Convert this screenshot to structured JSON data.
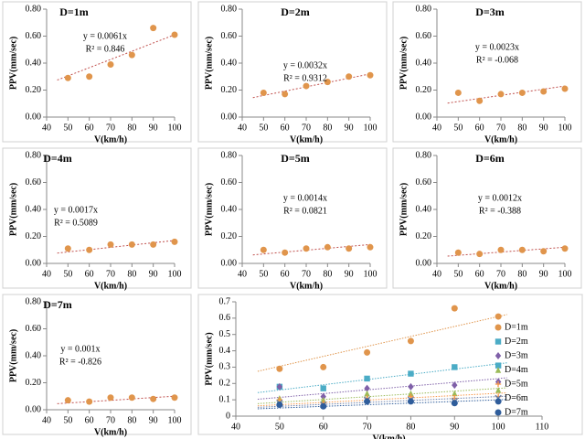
{
  "chart_data": [
    {
      "type": "scatter",
      "title": "D=1m",
      "xlabel": "V(km/h)",
      "ylabel": "PPV(mm/sec)",
      "x": [
        50,
        60,
        70,
        80,
        90,
        100
      ],
      "values": [
        0.29,
        0.3,
        0.39,
        0.46,
        0.66,
        0.61
      ],
      "color": "#e0954c",
      "trendline": {
        "slope": {
          "value": 0.0061,
          "label": "y = 0.0061x"
        },
        "r2": {
          "value": 0.846,
          "label": "R² = 0.846"
        },
        "range": [
          45,
          100
        ]
      },
      "xlim": [
        40,
        100
      ],
      "xticks": [
        40,
        50,
        60,
        70,
        80,
        90,
        100
      ],
      "ylim": [
        0,
        0.8
      ],
      "yticks": [
        {
          "value": 0,
          "label": "0.00"
        },
        {
          "value": 0.2,
          "label": "0.20"
        },
        {
          "value": 0.4,
          "label": "0.40"
        },
        {
          "value": 0.6,
          "label": "0.60"
        },
        {
          "value": 0.8,
          "label": "0.80"
        }
      ]
    },
    {
      "type": "scatter",
      "title": "D=2m",
      "xlabel": "V(km/h)",
      "ylabel": "PPV(mm/sec)",
      "x": [
        50,
        60,
        70,
        80,
        90,
        100
      ],
      "values": [
        0.18,
        0.17,
        0.23,
        0.26,
        0.3,
        0.31
      ],
      "color": "#e0954c",
      "trendline": {
        "slope": {
          "value": 0.0032,
          "label": "y = 0.0032x"
        },
        "r2": {
          "value": 0.9312,
          "label": "R² = 0.9312"
        },
        "range": [
          45,
          100
        ]
      },
      "xlim": [
        40,
        100
      ],
      "xticks": [
        40,
        50,
        60,
        70,
        80,
        90,
        100
      ],
      "ylim": [
        0,
        0.8
      ],
      "yticks": [
        {
          "value": 0,
          "label": "0.00"
        },
        {
          "value": 0.2,
          "label": "0.20"
        },
        {
          "value": 0.4,
          "label": "0.40"
        },
        {
          "value": 0.6,
          "label": "0.60"
        },
        {
          "value": 0.8,
          "label": "0.80"
        }
      ]
    },
    {
      "type": "scatter",
      "title": "D=3m",
      "xlabel": "V(km/h)",
      "ylabel": "PPV(mm/sec)",
      "x": [
        50,
        60,
        70,
        80,
        90,
        100
      ],
      "values": [
        0.18,
        0.12,
        0.17,
        0.18,
        0.19,
        0.21
      ],
      "color": "#e0954c",
      "trendline": {
        "slope": {
          "value": 0.0023,
          "label": "y = 0.0023x"
        },
        "r2": {
          "value": -0.068,
          "label": "R² = -0.068"
        },
        "range": [
          45,
          100
        ]
      },
      "xlim": [
        40,
        100
      ],
      "xticks": [
        40,
        50,
        60,
        70,
        80,
        90,
        100
      ],
      "ylim": [
        0,
        0.8
      ],
      "yticks": [
        {
          "value": 0,
          "label": "0.00"
        },
        {
          "value": 0.2,
          "label": "0.20"
        },
        {
          "value": 0.4,
          "label": "0.40"
        },
        {
          "value": 0.6,
          "label": "0.60"
        },
        {
          "value": 0.8,
          "label": "0.80"
        }
      ]
    },
    {
      "type": "scatter",
      "title": "D=4m",
      "xlabel": "V(km/h)",
      "ylabel": "PPV(mm/sec)",
      "x": [
        50,
        60,
        70,
        80,
        90,
        100
      ],
      "values": [
        0.11,
        0.1,
        0.14,
        0.14,
        0.14,
        0.16
      ],
      "color": "#e0954c",
      "trendline": {
        "slope": {
          "value": 0.0017,
          "label": "y = 0.0017x"
        },
        "r2": {
          "value": 0.5089,
          "label": "R² = 0.5089"
        },
        "range": [
          45,
          100
        ]
      },
      "xlim": [
        40,
        100
      ],
      "xticks": [
        40,
        50,
        60,
        70,
        80,
        90,
        100
      ],
      "ylim": [
        0,
        0.8
      ],
      "yticks": [
        {
          "value": 0,
          "label": "0.00"
        },
        {
          "value": 0.2,
          "label": "0.20"
        },
        {
          "value": 0.4,
          "label": "0.40"
        },
        {
          "value": 0.6,
          "label": "0.60"
        },
        {
          "value": 0.8,
          "label": "0.80"
        }
      ]
    },
    {
      "type": "scatter",
      "title": "D=5m",
      "xlabel": "V(km/h)",
      "ylabel": "PPV(mm/sec)",
      "x": [
        50,
        60,
        70,
        80,
        90,
        100
      ],
      "values": [
        0.1,
        0.08,
        0.11,
        0.12,
        0.11,
        0.12
      ],
      "color": "#e0954c",
      "trendline": {
        "slope": {
          "value": 0.0014,
          "label": "y = 0.0014x"
        },
        "r2": {
          "value": 0.0821,
          "label": "R² = 0.0821"
        },
        "range": [
          45,
          100
        ]
      },
      "xlim": [
        40,
        100
      ],
      "xticks": [
        40,
        50,
        60,
        70,
        80,
        90,
        100
      ],
      "ylim": [
        0,
        0.8
      ],
      "yticks": [
        {
          "value": 0,
          "label": "0.00"
        },
        {
          "value": 0.2,
          "label": "0.20"
        },
        {
          "value": 0.4,
          "label": "0.40"
        },
        {
          "value": 0.6,
          "label": "0.60"
        },
        {
          "value": 0.8,
          "label": "0.80"
        }
      ]
    },
    {
      "type": "scatter",
      "title": "D=6m",
      "xlabel": "V(km/h)",
      "ylabel": "PPV(mm/sec)",
      "x": [
        50,
        60,
        70,
        80,
        90,
        100
      ],
      "values": [
        0.08,
        0.07,
        0.1,
        0.1,
        0.09,
        0.11
      ],
      "color": "#e0954c",
      "trendline": {
        "slope": {
          "value": 0.0012,
          "label": "y = 0.0012x"
        },
        "r2": {
          "value": -0.388,
          "label": "R² = -0.388"
        },
        "range": [
          45,
          100
        ]
      },
      "xlim": [
        40,
        100
      ],
      "xticks": [
        40,
        50,
        60,
        70,
        80,
        90,
        100
      ],
      "ylim": [
        0,
        0.8
      ],
      "yticks": [
        {
          "value": 0,
          "label": "0.00"
        },
        {
          "value": 0.2,
          "label": "0.20"
        },
        {
          "value": 0.4,
          "label": "0.40"
        },
        {
          "value": 0.6,
          "label": "0.60"
        },
        {
          "value": 0.8,
          "label": "0.80"
        }
      ]
    },
    {
      "type": "scatter",
      "title": "D=7m",
      "xlabel": "V(km/h)",
      "ylabel": "PPV(mm/sec)",
      "x": [
        50,
        60,
        70,
        80,
        90,
        100
      ],
      "values": [
        0.07,
        0.06,
        0.09,
        0.09,
        0.08,
        0.09
      ],
      "color": "#e0954c",
      "trendline": {
        "slope": {
          "value": 0.001,
          "label": "y = 0.001x"
        },
        "r2": {
          "value": -0.826,
          "label": "R² = -0.826"
        },
        "range": [
          45,
          100
        ]
      },
      "xlim": [
        40,
        100
      ],
      "xticks": [
        40,
        50,
        60,
        70,
        80,
        90,
        100
      ],
      "ylim": [
        0,
        0.8
      ],
      "yticks": [
        {
          "value": 0,
          "label": "0.00"
        },
        {
          "value": 0.2,
          "label": "0.20"
        },
        {
          "value": 0.4,
          "label": "0.40"
        },
        {
          "value": 0.6,
          "label": "0.60"
        },
        {
          "value": 0.8,
          "label": "0.80"
        }
      ]
    },
    {
      "type": "multi-scatter",
      "xlabel": "V(km/h)",
      "ylabel": "PPV(mm/sec)",
      "x": [
        50,
        60,
        70,
        80,
        90,
        100
      ],
      "trend_range": [
        45,
        102
      ],
      "series": [
        {
          "name": "D=1m",
          "color": "#e0954c",
          "marker": "circle",
          "trendline_slope": 0.0061,
          "values": [
            0.29,
            0.3,
            0.39,
            0.46,
            0.66,
            0.61
          ]
        },
        {
          "name": "D=2m",
          "color": "#4bacc6",
          "marker": "square",
          "trendline_slope": 0.0032,
          "values": [
            0.18,
            0.17,
            0.23,
            0.26,
            0.3,
            0.31
          ]
        },
        {
          "name": "D=3m",
          "color": "#7f60a8",
          "marker": "diamond",
          "trendline_slope": 0.0023,
          "values": [
            0.18,
            0.12,
            0.17,
            0.18,
            0.19,
            0.21
          ]
        },
        {
          "name": "D=4m",
          "color": "#9bbb59",
          "marker": "triangle",
          "trendline_slope": 0.0017,
          "values": [
            0.11,
            0.1,
            0.14,
            0.14,
            0.14,
            0.16
          ]
        },
        {
          "name": "D=5m",
          "color": "#f79646",
          "marker": "plus",
          "trendline_slope": 0.0014,
          "values": [
            0.1,
            0.08,
            0.11,
            0.12,
            0.11,
            0.12
          ]
        },
        {
          "name": "D=6m",
          "color": "#6b7fa8",
          "marker": "x",
          "trendline_slope": 0.0012,
          "values": [
            0.08,
            0.07,
            0.1,
            0.1,
            0.09,
            0.11
          ]
        },
        {
          "name": "D=7m",
          "color": "#2f5d9b",
          "marker": "circle",
          "trendline_slope": 0.001,
          "values": [
            0.07,
            0.06,
            0.09,
            0.09,
            0.08,
            0.09
          ]
        }
      ],
      "xlim": [
        40,
        110
      ],
      "xticks": [
        40,
        50,
        60,
        70,
        80,
        90,
        100,
        110
      ],
      "ylim": [
        0,
        0.7
      ],
      "yticks": [
        0,
        0.1,
        0.2,
        0.3,
        0.4,
        0.5,
        0.6,
        0.7
      ],
      "legend": "right"
    }
  ]
}
